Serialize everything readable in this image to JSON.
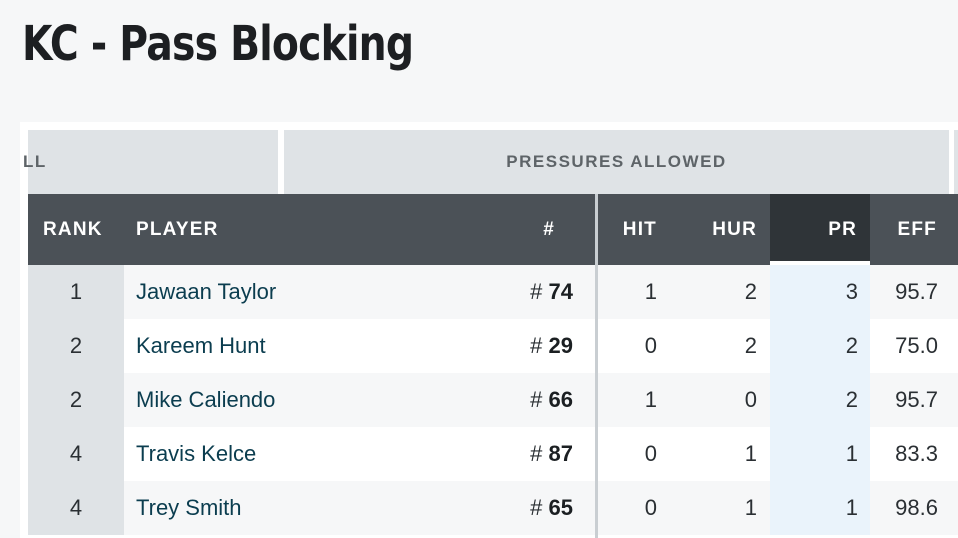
{
  "page": {
    "title": "KC - Pass Blocking"
  },
  "table": {
    "group_headers": {
      "all": "LL",
      "pressures": "PRESSURES ALLOWED"
    },
    "columns": {
      "rank": "RANK",
      "player": "PLAYER",
      "number": "#",
      "hit": "HIT",
      "hur": "HUR",
      "pr": "PR",
      "eff": "EFF"
    },
    "sorted_column": "PR",
    "rows": [
      {
        "rank": "1",
        "player": "Jawaan Taylor",
        "prefix": "# ",
        "number": "74",
        "hit": "1",
        "hur": "2",
        "pr": "3",
        "eff": "95.7"
      },
      {
        "rank": "2",
        "player": "Kareem Hunt",
        "prefix": "# ",
        "number": "29",
        "hit": "0",
        "hur": "2",
        "pr": "2",
        "eff": "75.0"
      },
      {
        "rank": "2",
        "player": "Mike Caliendo",
        "prefix": "# ",
        "number": "66",
        "hit": "1",
        "hur": "0",
        "pr": "2",
        "eff": "95.7"
      },
      {
        "rank": "4",
        "player": "Travis Kelce",
        "prefix": "# ",
        "number": "87",
        "hit": "0",
        "hur": "1",
        "pr": "1",
        "eff": "83.3"
      },
      {
        "rank": "4",
        "player": "Trey Smith",
        "prefix": "# ",
        "number": "65",
        "hit": "0",
        "hur": "1",
        "pr": "1",
        "eff": "98.6"
      }
    ]
  },
  "colors": {
    "header_bg": "#4b5157",
    "active_header_bg": "#2f3438",
    "group_header_bg": "#dfe3e6",
    "sorted_column_bg": "#eaf3fb",
    "player_link": "#0b3d4f"
  }
}
